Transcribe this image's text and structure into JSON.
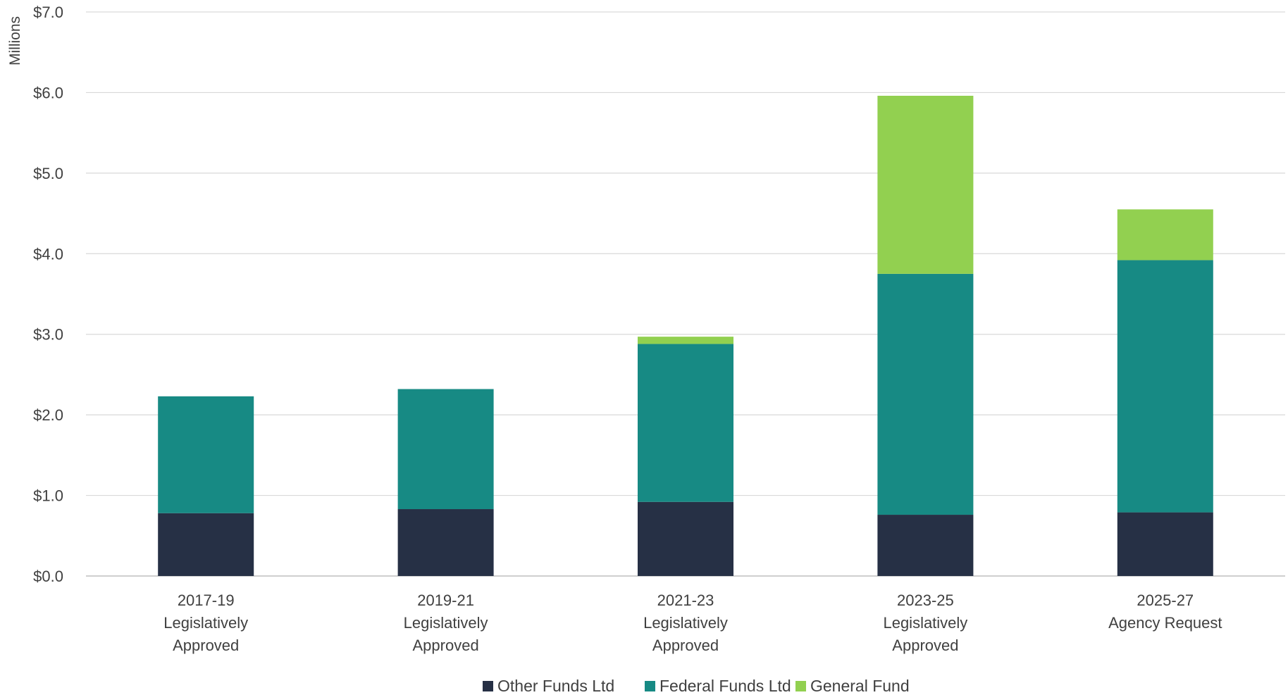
{
  "chart_data": {
    "type": "bar",
    "stacked": true,
    "ylabel": "Millions",
    "ylim": [
      0,
      7
    ],
    "yticks": [
      "$0.0",
      "$1.0",
      "$2.0",
      "$3.0",
      "$4.0",
      "$5.0",
      "$6.0",
      "$7.0"
    ],
    "grid": true,
    "legend_position": "bottom",
    "categories": [
      [
        "2017-19",
        "Legislatively",
        "Approved"
      ],
      [
        "2019-21",
        "Legislatively",
        "Approved"
      ],
      [
        "2021-23",
        "Legislatively",
        "Approved"
      ],
      [
        "2023-25",
        "Legislatively",
        "Approved"
      ],
      [
        "2025-27",
        "Agency Request"
      ]
    ],
    "series": [
      {
        "name": "Other Funds Ltd",
        "color": "#263045",
        "values": [
          0.78,
          0.83,
          0.92,
          0.76,
          0.79
        ]
      },
      {
        "name": "Federal Funds Ltd",
        "color": "#178a84",
        "values": [
          1.45,
          1.49,
          1.96,
          2.99,
          3.13
        ]
      },
      {
        "name": "General Fund",
        "color": "#92d050",
        "values": [
          0.0,
          0.0,
          0.09,
          2.21,
          0.63
        ]
      }
    ]
  }
}
